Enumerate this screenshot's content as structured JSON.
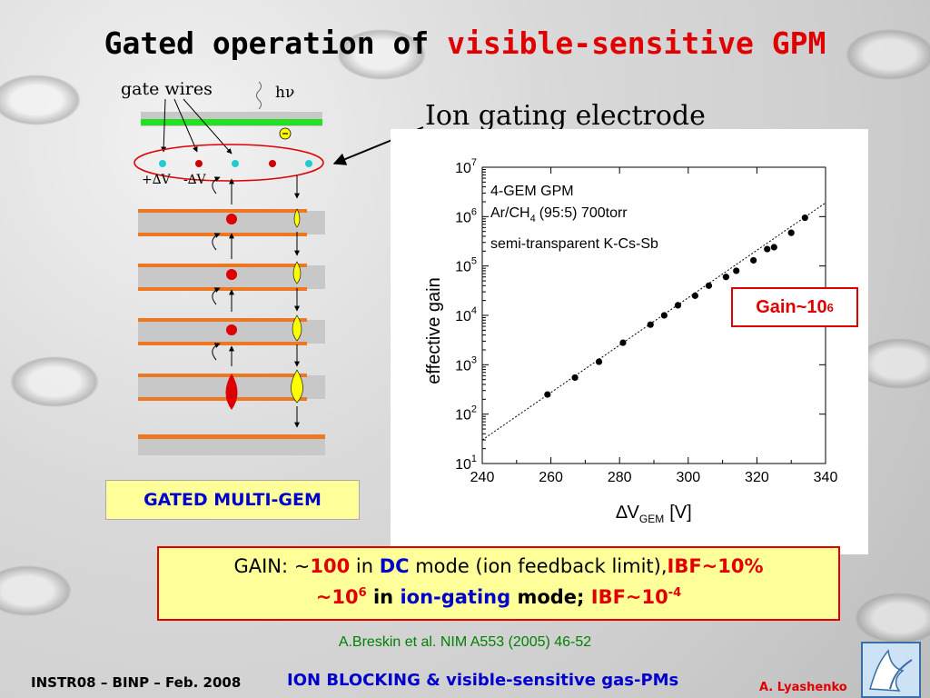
{
  "title": {
    "part1": "Gated operation of",
    "part2": "visible-sensitive GPM"
  },
  "diagram": {
    "gate_wires_label": "gate wires",
    "photon_label": "hν",
    "plus_dv": "+∆V",
    "minus_dv": "-∆V"
  },
  "ion_gating_label": "Ion gating electrode",
  "chart_data": {
    "type": "scatter",
    "xlabel_prefix": "∆V",
    "xlabel_sub": "GEM",
    "xlabel_unit": "[V]",
    "ylabel": "effective gain",
    "xlim": [
      240,
      340
    ],
    "ylim": [
      10,
      10000000
    ],
    "y_scale": "log",
    "x_ticks": [
      240,
      260,
      280,
      300,
      320,
      340
    ],
    "y_ticks": [
      1,
      2,
      3,
      4,
      5,
      6,
      7
    ],
    "legend_lines": [
      "4-GEM GPM",
      "Ar/CH",
      "(95:5) 700torr",
      "semi-transparent K-Cs-Sb"
    ],
    "legend_sub": "4",
    "series": [
      {
        "marker": "filled-circle",
        "x": [
          259,
          267,
          274,
          281,
          289,
          293,
          297,
          302,
          306,
          311,
          314,
          319,
          323,
          325,
          330,
          334
        ],
        "y": [
          250,
          550,
          1150,
          2800,
          6500,
          10000,
          16000,
          25000,
          40000,
          60000,
          80000,
          130000,
          220000,
          240000,
          470000,
          950000
        ]
      },
      {
        "name": "fit",
        "style": "dotted",
        "x": [
          240,
          340
        ],
        "y": [
          30,
          1900000
        ]
      }
    ]
  },
  "gain_box": {
    "prefix": "Gain~10",
    "sup": "6"
  },
  "gated_label": "GATED MULTI-GEM",
  "summary": {
    "l1_a": "GAIN: ~",
    "l1_b": "100",
    "l1_c": " in ",
    "l1_d": "DC",
    "l1_e": " mode (ion feedback limit),",
    "l1_f": "IBF~10%",
    "l2_a": "~10",
    "l2_a_sup": "6",
    "l2_b": " in ",
    "l2_c": "ion-gating",
    "l2_d": " mode; ",
    "l2_e": "IBF~10",
    "l2_e_sup": "-4"
  },
  "reference": "A.Breskin et al. NIM A553 (2005) 46-52",
  "footer": {
    "left": "INSTR08 – BINP – Feb. 2008",
    "center": "ION BLOCKING & visible-sensitive gas-PMs",
    "right": "A. Lyashenko"
  }
}
